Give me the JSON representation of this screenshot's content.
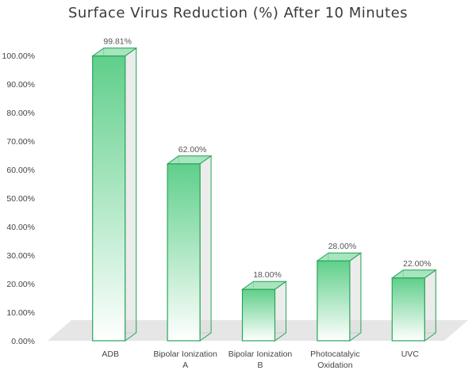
{
  "chart_data": {
    "type": "bar",
    "title": "Surface Virus Reduction (%) After 10 Minutes",
    "xlabel": "",
    "ylabel": "",
    "categories": [
      [
        "ADB"
      ],
      [
        "Bipolar Ionization",
        "A"
      ],
      [
        "Bipolar Ionization",
        "B"
      ],
      [
        "Photocatalyic",
        "Oxidation"
      ],
      [
        "UVC"
      ]
    ],
    "values": [
      99.81,
      62.0,
      18.0,
      28.0,
      22.0
    ],
    "data_labels": [
      "99.81%",
      "62.00%",
      "18.00%",
      "28.00%",
      "22.00%"
    ],
    "ylim": [
      0,
      100
    ],
    "y_ticks": [
      "0.00%",
      "10.00%",
      "20.00%",
      "30.00%",
      "40.00%",
      "50.00%",
      "60.00%",
      "70.00%",
      "80.00%",
      "90.00%",
      "100.00%"
    ],
    "grid": false,
    "legend": "none",
    "colors": {
      "bar_top": "#5fcf8a",
      "bar_bottom": "#ffffff",
      "bar_edge": "#2aa55a",
      "floor": "#e6e6e6"
    }
  }
}
